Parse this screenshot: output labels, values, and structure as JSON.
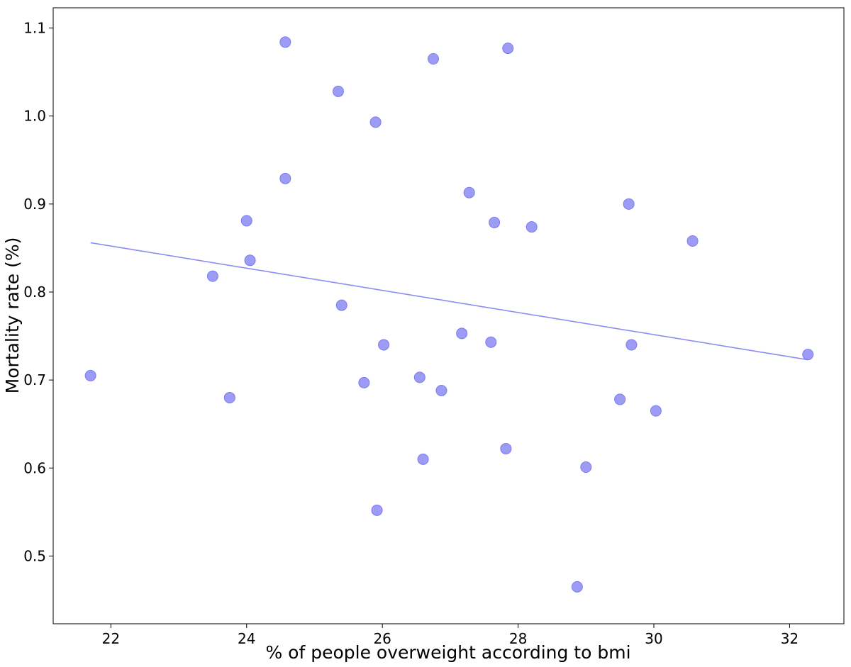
{
  "chart_data": {
    "type": "scatter",
    "title": "",
    "xlabel": "% of people overweight according to bmi",
    "ylabel": "Mortality rate (%)",
    "xlim": [
      21.15,
      32.8
    ],
    "ylim": [
      0.423,
      1.123
    ],
    "xticks": [
      22,
      24,
      26,
      28,
      30,
      32
    ],
    "yticks": [
      0.5,
      0.6,
      0.7,
      0.8,
      0.9,
      1.0,
      1.1
    ],
    "xtick_labels": [
      "22",
      "24",
      "26",
      "28",
      "30",
      "32"
    ],
    "ytick_labels": [
      "0.5",
      "0.6",
      "0.7",
      "0.8",
      "0.9",
      "1.0",
      "1.1"
    ],
    "grid": false,
    "point_color": "#7b7bf2",
    "point_opacity": 0.75,
    "line_color": "#8c8cf5",
    "points": [
      {
        "x": 21.7,
        "y": 0.705
      },
      {
        "x": 23.5,
        "y": 0.818
      },
      {
        "x": 23.75,
        "y": 0.68
      },
      {
        "x": 24.0,
        "y": 0.881
      },
      {
        "x": 24.05,
        "y": 0.836
      },
      {
        "x": 24.57,
        "y": 1.084
      },
      {
        "x": 24.57,
        "y": 0.929
      },
      {
        "x": 25.35,
        "y": 1.028
      },
      {
        "x": 25.4,
        "y": 0.785
      },
      {
        "x": 25.73,
        "y": 0.697
      },
      {
        "x": 25.9,
        "y": 0.993
      },
      {
        "x": 25.92,
        "y": 0.552
      },
      {
        "x": 26.02,
        "y": 0.74
      },
      {
        "x": 26.55,
        "y": 0.703
      },
      {
        "x": 26.6,
        "y": 0.61
      },
      {
        "x": 26.75,
        "y": 1.065
      },
      {
        "x": 26.87,
        "y": 0.688
      },
      {
        "x": 27.17,
        "y": 0.753
      },
      {
        "x": 27.28,
        "y": 0.913
      },
      {
        "x": 27.6,
        "y": 0.743
      },
      {
        "x": 27.65,
        "y": 0.879
      },
      {
        "x": 27.82,
        "y": 0.622
      },
      {
        "x": 27.85,
        "y": 1.077
      },
      {
        "x": 28.2,
        "y": 0.874
      },
      {
        "x": 28.87,
        "y": 0.465
      },
      {
        "x": 29.0,
        "y": 0.601
      },
      {
        "x": 29.5,
        "y": 0.678
      },
      {
        "x": 29.63,
        "y": 0.9
      },
      {
        "x": 29.67,
        "y": 0.74
      },
      {
        "x": 30.03,
        "y": 0.665
      },
      {
        "x": 30.57,
        "y": 0.858
      },
      {
        "x": 32.27,
        "y": 0.729
      }
    ],
    "trend_line": {
      "x": [
        21.7,
        32.27
      ],
      "y": [
        0.856,
        0.723
      ]
    }
  }
}
